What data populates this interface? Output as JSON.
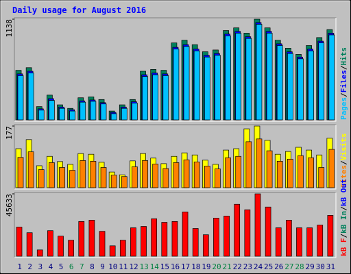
{
  "legend_separator": "/",
  "chart_data": [
    {
      "type": "bar",
      "title": "Daily usage for August 2016",
      "categories": [
        "1",
        "2",
        "3",
        "4",
        "5",
        "6",
        "7",
        "8",
        "9",
        "10",
        "11",
        "12",
        "13",
        "14",
        "15",
        "16",
        "17",
        "18",
        "19",
        "20",
        "21",
        "22",
        "23",
        "24",
        "25",
        "26",
        "27",
        "28",
        "29",
        "30",
        "31"
      ],
      "category_colors": [
        "#000080",
        "#000080",
        "#000080",
        "#000080",
        "#000080",
        "#008040",
        "#008040",
        "#000080",
        "#000080",
        "#000080",
        "#000080",
        "#000080",
        "#008040",
        "#008040",
        "#000080",
        "#000080",
        "#000080",
        "#000080",
        "#000080",
        "#008040",
        "#008040",
        "#000080",
        "#000080",
        "#000080",
        "#000080",
        "#000080",
        "#008040",
        "#008040",
        "#000080",
        "#000080",
        "#000080"
      ],
      "ylim": [
        0,
        1138
      ],
      "yticks": [
        1138
      ],
      "series": [
        {
          "name": "Pages",
          "color": "#00c0ff",
          "values": [
            500,
            530,
            110,
            220,
            130,
            100,
            200,
            210,
            180,
            70,
            130,
            190,
            490,
            510,
            500,
            800,
            830,
            780,
            710,
            730,
            950,
            980,
            920,
            1080,
            980,
            840,
            750,
            690,
            780,
            870,
            960
          ]
        },
        {
          "name": "Files",
          "color": "#0000ff",
          "values": [
            520,
            550,
            125,
            240,
            145,
            115,
            215,
            225,
            195,
            85,
            145,
            205,
            510,
            530,
            520,
            820,
            850,
            800,
            730,
            750,
            970,
            1000,
            940,
            1100,
            1000,
            860,
            770,
            710,
            800,
            890,
            980
          ]
        },
        {
          "name": "Hits",
          "color": "#00805c",
          "values": [
            560,
            590,
            150,
            280,
            170,
            130,
            250,
            260,
            230,
            100,
            170,
            230,
            550,
            570,
            560,
            870,
            900,
            850,
            770,
            790,
            1010,
            1040,
            980,
            1138,
            1040,
            900,
            810,
            740,
            840,
            930,
            1020
          ]
        }
      ]
    },
    {
      "type": "bar",
      "ylim": [
        0,
        177
      ],
      "yticks": [
        177
      ],
      "series": [
        {
          "name": "Sites",
          "color": "#ff8000",
          "values": [
            87,
            103,
            52,
            72,
            58,
            50,
            78,
            76,
            58,
            36,
            32,
            60,
            78,
            68,
            55,
            72,
            80,
            74,
            62,
            54,
            86,
            90,
            132,
            140,
            106,
            76,
            82,
            92,
            86,
            58,
            110
          ]
        },
        {
          "name": "Visits",
          "color": "#ffff00",
          "values": [
            112,
            138,
            63,
            90,
            75,
            67,
            98,
            96,
            73,
            45,
            37,
            77,
            98,
            85,
            69,
            90,
            100,
            94,
            79,
            67,
            108,
            112,
            169,
            177,
            136,
            96,
            104,
            116,
            108,
            94,
            142
          ]
        }
      ]
    },
    {
      "type": "bar",
      "ylim": [
        0,
        45633
      ],
      "yticks": [
        45633
      ],
      "series": [
        {
          "name": "kB F",
          "color": "#ff0000",
          "values": [
            21300,
            17200,
            4600,
            18700,
            14700,
            11700,
            25400,
            26400,
            18200,
            7600,
            11700,
            20800,
            21800,
            27400,
            24800,
            25400,
            32400,
            20300,
            15700,
            27900,
            29400,
            38000,
            34000,
            45633,
            36000,
            20800,
            26400,
            20800,
            20800,
            22800,
            29900
          ]
        },
        {
          "name": "kB In",
          "color": "#00805c"
        },
        {
          "name": "kB Out",
          "color": "#0000ff"
        }
      ]
    }
  ]
}
